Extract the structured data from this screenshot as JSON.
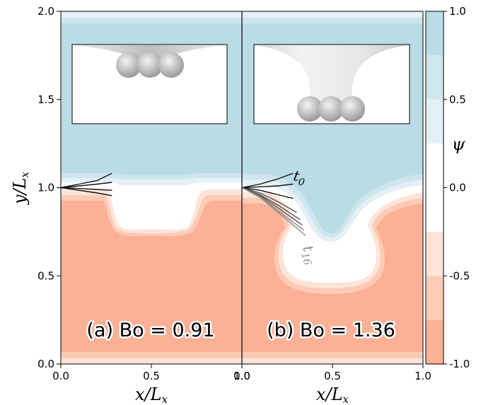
{
  "chart_data": {
    "type": "heatmap",
    "colormap": {
      "label": "ψ",
      "range": [
        -1.0,
        1.0
      ],
      "ticks": [
        "1.0",
        "0.5",
        "0.0",
        "-0.5",
        "-1.0"
      ],
      "levels": [
        {
          "from": 0.75,
          "to": 1.0,
          "color": "#b9dce6"
        },
        {
          "from": 0.5,
          "to": 0.75,
          "color": "#cfe6ee"
        },
        {
          "from": 0.25,
          "to": 0.5,
          "color": "#e3f0f5"
        },
        {
          "from": 0.0,
          "to": 0.25,
          "color": "#ffffff"
        },
        {
          "from": -0.25,
          "to": 0.0,
          "color": "#ffffff"
        },
        {
          "from": -0.5,
          "to": -0.25,
          "color": "#fde4d9"
        },
        {
          "from": -0.75,
          "to": -0.5,
          "color": "#fccbb5"
        },
        {
          "from": -1.0,
          "to": -0.75,
          "color": "#fcb095"
        }
      ]
    },
    "xlabel": "x/L_x",
    "ylabel": "y/L_x",
    "xlim": [
      0.0,
      1.0
    ],
    "ylim": [
      0.0,
      2.0
    ],
    "x_ticks": [
      "0.0",
      "0.5",
      "1.0"
    ],
    "y_ticks": [
      "0.0",
      "0.5",
      "1.0",
      "1.5",
      "2.0"
    ],
    "panels": [
      {
        "id": "a",
        "label": "(a) Bo = 0.91",
        "interface_profile": [
          [
            0.0,
            0.98
          ],
          [
            0.08,
            0.99
          ],
          [
            0.15,
            1.0
          ],
          [
            0.2,
            1.0
          ],
          [
            0.25,
            0.97
          ],
          [
            0.3,
            0.92
          ],
          [
            0.36,
            0.86
          ],
          [
            0.42,
            0.84
          ],
          [
            0.5,
            0.83
          ],
          [
            0.58,
            0.83
          ],
          [
            0.66,
            0.86
          ],
          [
            0.72,
            0.93
          ],
          [
            0.8,
            0.98
          ],
          [
            0.9,
            0.99
          ],
          [
            1.0,
            0.98
          ]
        ],
        "contact_line_tracks": [
          {
            "x": [
              0.0,
              0.1,
              0.2,
              0.28
            ],
            "y": [
              1.0,
              1.02,
              1.04,
              1.08
            ]
          },
          {
            "x": [
              0.0,
              0.1,
              0.2,
              0.28
            ],
            "y": [
              1.0,
              1.01,
              1.02,
              1.03
            ]
          },
          {
            "x": [
              0.0,
              0.1,
              0.2,
              0.28
            ],
            "y": [
              1.0,
              0.995,
              0.99,
              0.985
            ]
          },
          {
            "x": [
              0.0,
              0.1,
              0.2,
              0.28
            ],
            "y": [
              1.0,
              0.985,
              0.97,
              0.955
            ]
          }
        ],
        "inset": "shallow meniscus with spheres near the top surface"
      },
      {
        "id": "b",
        "label": "(b) Bo = 1.36",
        "interface_profile": [
          [
            0.0,
            0.99
          ],
          [
            0.1,
            1.0
          ],
          [
            0.18,
            0.99
          ],
          [
            0.26,
            0.95
          ],
          [
            0.33,
            0.87
          ],
          [
            0.38,
            0.8
          ],
          [
            0.42,
            0.7
          ],
          [
            0.47,
            0.65
          ],
          [
            0.52,
            0.64
          ],
          [
            0.58,
            0.66
          ],
          [
            0.63,
            0.73
          ],
          [
            0.66,
            0.8
          ],
          [
            0.72,
            0.88
          ],
          [
            0.8,
            0.95
          ],
          [
            0.9,
            0.98
          ],
          [
            1.0,
            0.98
          ]
        ],
        "contact_line_tracks": [
          {
            "x": [
              0.0,
              0.1,
              0.2,
              0.28
            ],
            "y": [
              1.0,
              1.02,
              1.05,
              1.08
            ]
          },
          {
            "x": [
              0.0,
              0.1,
              0.2,
              0.28
            ],
            "y": [
              1.0,
              1.005,
              1.01,
              1.02
            ]
          },
          {
            "x": [
              0.0,
              0.1,
              0.2,
              0.28
            ],
            "y": [
              1.0,
              0.985,
              0.96,
              0.94
            ]
          },
          {
            "x": [
              0.0,
              0.1,
              0.2,
              0.3
            ],
            "y": [
              1.0,
              0.97,
              0.92,
              0.86
            ]
          },
          {
            "x": [
              0.0,
              0.1,
              0.2,
              0.32
            ],
            "y": [
              1.0,
              0.96,
              0.9,
              0.82
            ]
          },
          {
            "x": [
              0.0,
              0.1,
              0.2,
              0.33
            ],
            "y": [
              1.0,
              0.955,
              0.885,
              0.79
            ]
          },
          {
            "x": [
              0.0,
              0.1,
              0.2,
              0.34
            ],
            "y": [
              1.0,
              0.95,
              0.87,
              0.76
            ]
          },
          {
            "x": [
              0.0,
              0.1,
              0.2,
              0.35
            ],
            "y": [
              1.0,
              0.945,
              0.86,
              0.73
            ]
          }
        ],
        "track_labels": {
          "first": "t",
          "first_sub": "0",
          "last": "t",
          "last_sub": "16"
        },
        "inset": "deep funnel-shaped meniscus with spheres at the bottom"
      }
    ],
    "grid": false,
    "legend": "colorbar-right"
  }
}
